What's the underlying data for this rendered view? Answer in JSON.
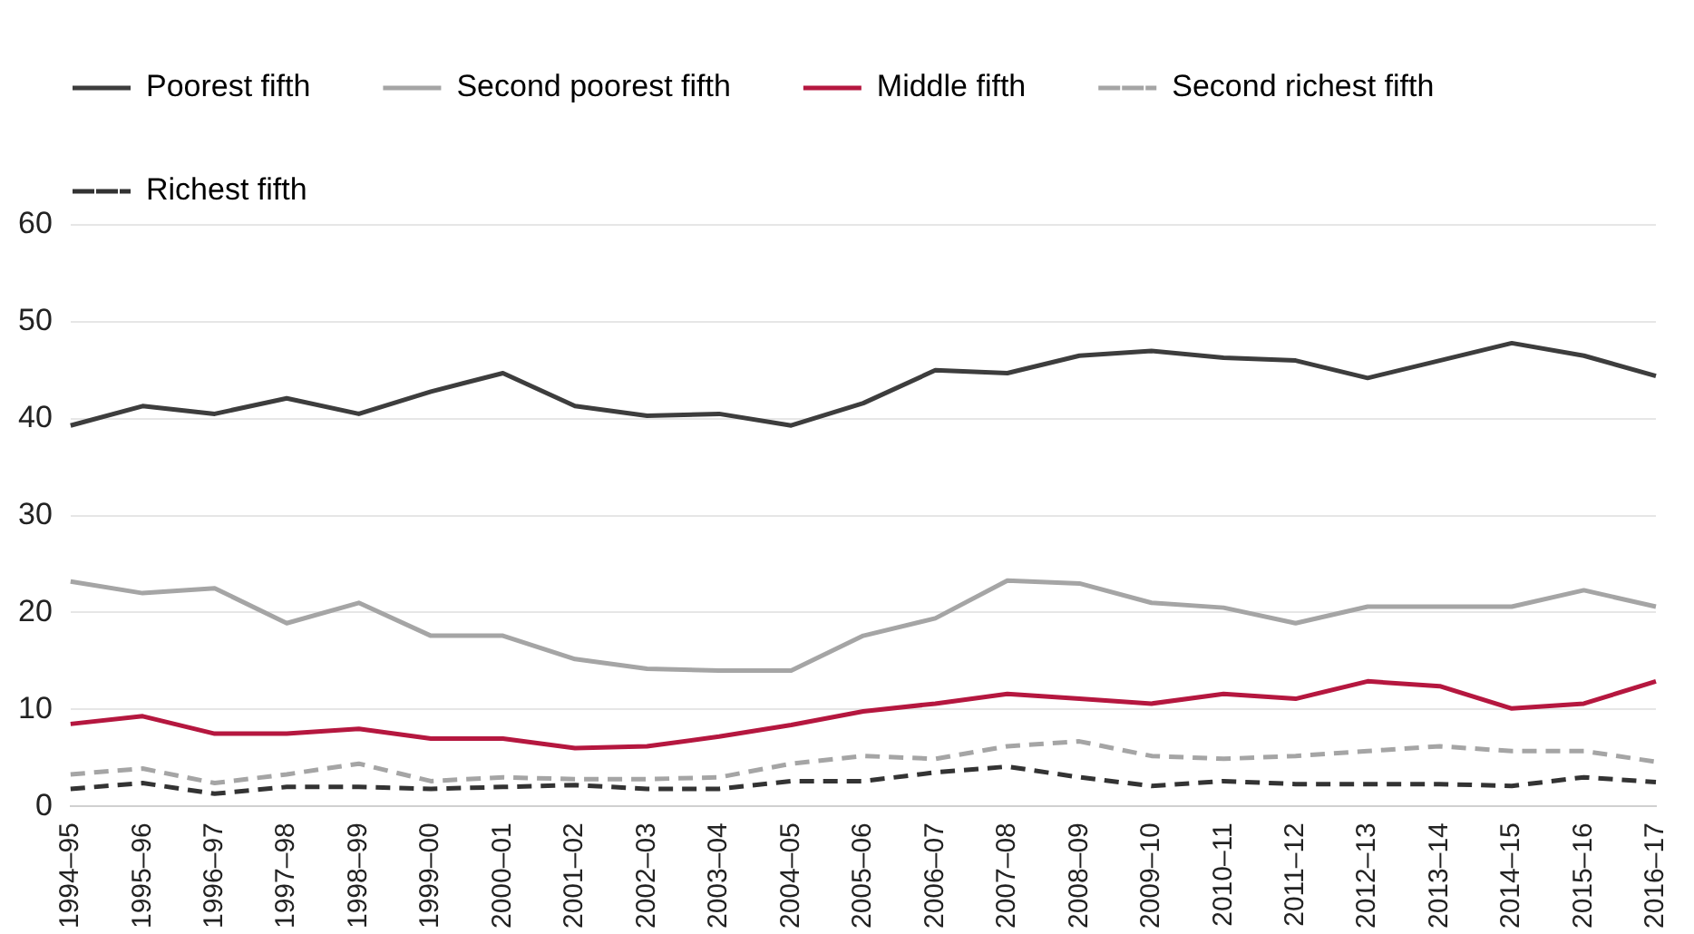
{
  "chart_data": {
    "type": "line",
    "categories": [
      "1994–95",
      "1995–96",
      "1996–97",
      "1997–98",
      "1998–99",
      "1999–00",
      "2000–01",
      "2001–02",
      "2002–03",
      "2003–04",
      "2004–05",
      "2005–06",
      "2006–07",
      "2007–08",
      "2008–09",
      "2009–10",
      "2010–11",
      "2011–12",
      "2012–13",
      "2013–14",
      "2014–15",
      "2015–16",
      "2016–17"
    ],
    "series": [
      {
        "name": "Poorest fifth",
        "color": "#3d3d3d",
        "line_style": "solid",
        "values": [
          39.3,
          41.3,
          40.5,
          42.1,
          40.5,
          42.8,
          44.7,
          41.3,
          40.3,
          40.5,
          39.3,
          41.6,
          45.0,
          44.7,
          46.5,
          47.0,
          46.3,
          46.0,
          44.2,
          46.0,
          47.8,
          46.5,
          44.4
        ]
      },
      {
        "name": "Second poorest fifth",
        "color": "#a5a5a5",
        "line_style": "solid",
        "values": [
          23.2,
          22.0,
          22.5,
          18.9,
          21.0,
          17.6,
          17.6,
          15.2,
          14.2,
          14.0,
          14.0,
          17.6,
          19.4,
          23.3,
          23.0,
          21.0,
          20.5,
          18.9,
          20.6,
          20.6,
          20.6,
          22.3,
          20.6
        ]
      },
      {
        "name": "Middle fifth",
        "color": "#b5173f",
        "line_style": "solid",
        "values": [
          8.5,
          9.3,
          7.5,
          7.5,
          8.0,
          7.0,
          7.0,
          6.0,
          6.2,
          7.2,
          8.4,
          9.8,
          10.6,
          11.6,
          11.1,
          10.6,
          11.6,
          11.1,
          12.9,
          12.4,
          10.1,
          10.6,
          12.9
        ]
      },
      {
        "name": "Second richest fifth",
        "color": "#a5a5a5",
        "line_style": "dashed",
        "values": [
          3.3,
          3.9,
          2.4,
          3.3,
          4.4,
          2.6,
          3.0,
          2.8,
          2.8,
          3.0,
          4.4,
          5.2,
          4.9,
          6.2,
          6.7,
          5.2,
          4.9,
          5.2,
          5.7,
          6.2,
          5.7,
          5.7,
          4.6
        ]
      },
      {
        "name": "Richest fifth",
        "color": "#333333",
        "line_style": "dashed",
        "values": [
          1.8,
          2.4,
          1.3,
          2.0,
          2.0,
          1.8,
          2.0,
          2.2,
          1.8,
          1.8,
          2.6,
          2.6,
          3.5,
          4.1,
          3.0,
          2.1,
          2.6,
          2.3,
          2.3,
          2.3,
          2.1,
          3.0,
          2.5
        ]
      }
    ],
    "ylim": [
      0,
      60
    ],
    "yticks": [
      0,
      10,
      20,
      30,
      40,
      50,
      60
    ],
    "grid": "y",
    "legend": "top left",
    "marker": "none"
  }
}
